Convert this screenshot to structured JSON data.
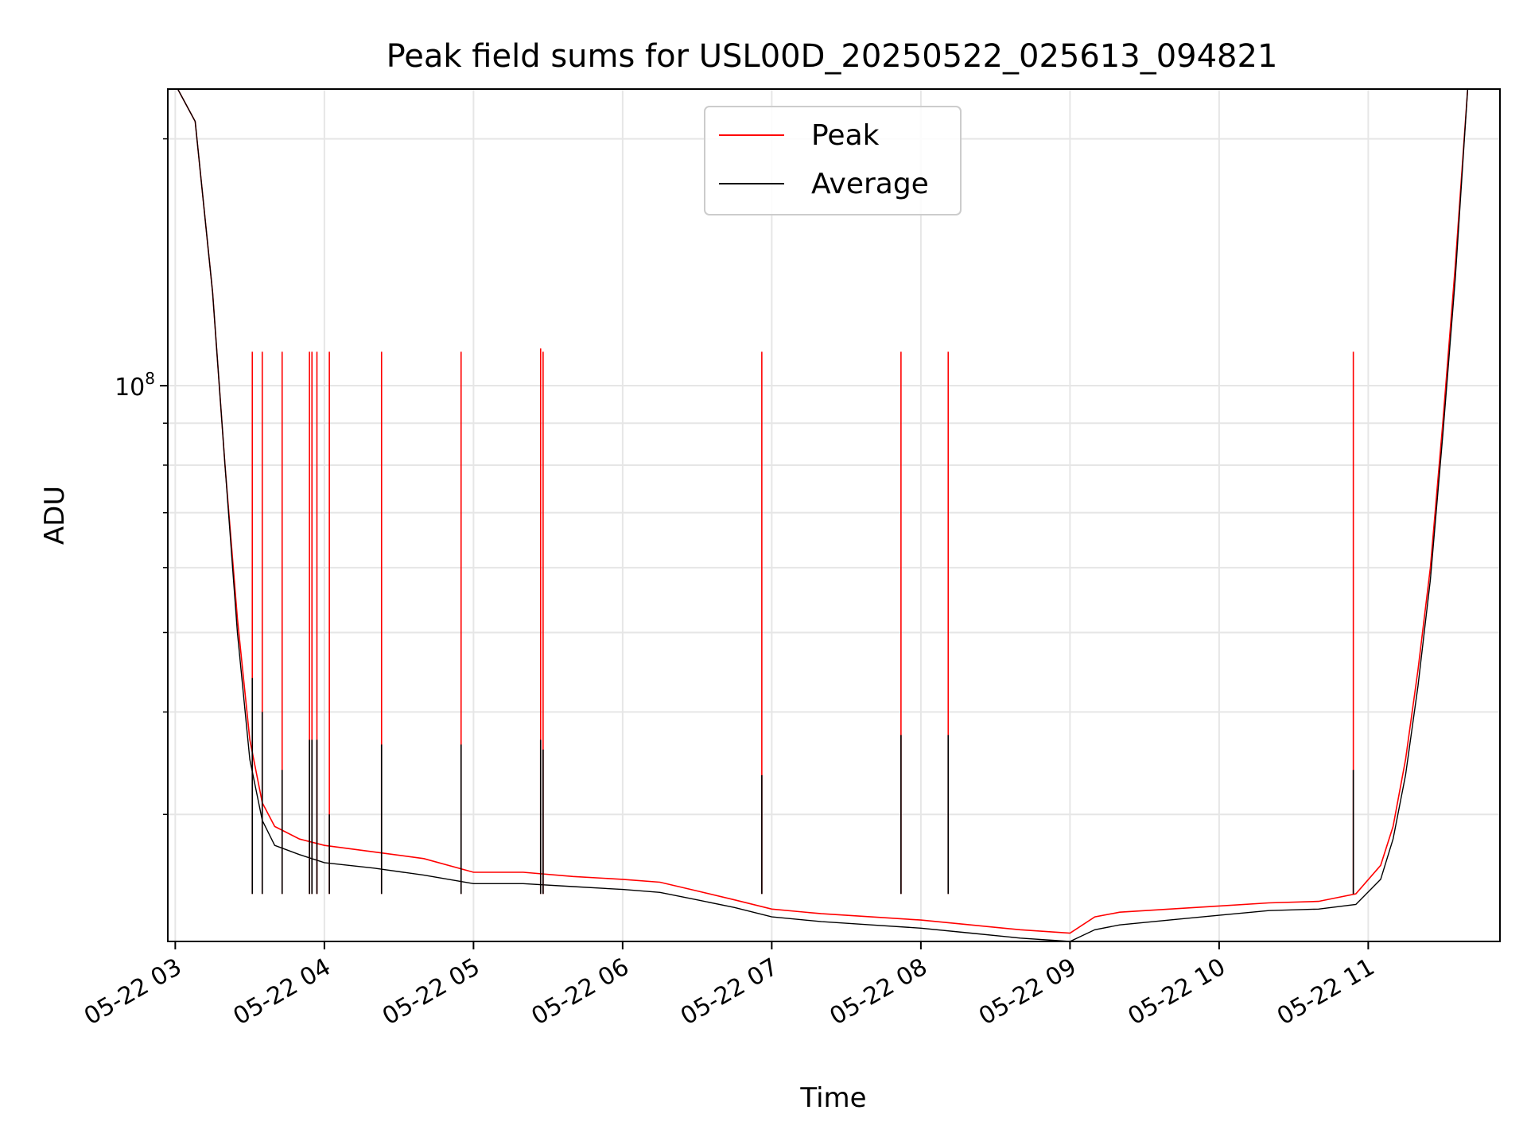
{
  "chart_data": {
    "type": "line",
    "title": "Peak field sums for USL00D_20250522_025613_094821",
    "xlabel": "Time",
    "ylabel": "ADU",
    "y_scale": "log",
    "grid": true,
    "legend_position": "top-center",
    "x_axis": {
      "range": [
        "2025-05-22 02:57",
        "2025-05-22 11:53"
      ],
      "ticks": [
        {
          "t": "2025-05-22 03:00",
          "label": "05-22 03"
        },
        {
          "t": "2025-05-22 04:00",
          "label": "05-22 04"
        },
        {
          "t": "2025-05-22 05:00",
          "label": "05-22 05"
        },
        {
          "t": "2025-05-22 06:00",
          "label": "05-22 06"
        },
        {
          "t": "2025-05-22 07:00",
          "label": "05-22 07"
        },
        {
          "t": "2025-05-22 08:00",
          "label": "05-22 08"
        },
        {
          "t": "2025-05-22 09:00",
          "label": "05-22 09"
        },
        {
          "t": "2025-05-22 10:00",
          "label": "05-22 10"
        },
        {
          "t": "2025-05-22 11:00",
          "label": "05-22 11"
        }
      ]
    },
    "y_axis": {
      "range": [
        21000000,
        230000000
      ],
      "major_ticks": [
        {
          "value": 100000000,
          "base": "10",
          "exp": "8"
        }
      ],
      "minor_ticks": [
        30000000,
        40000000,
        50000000,
        60000000,
        70000000,
        80000000,
        90000000,
        200000000
      ]
    },
    "series": [
      {
        "name": "Peak",
        "color": "#ff0000",
        "x": [
          "2025-05-22 03:01",
          "2025-05-22 03:08",
          "2025-05-22 03:15",
          "2025-05-22 03:20",
          "2025-05-22 03:25",
          "2025-05-22 03:30",
          "2025-05-22 03:35",
          "2025-05-22 03:40",
          "2025-05-22 03:50",
          "2025-05-22 04:00",
          "2025-05-22 04:20",
          "2025-05-22 04:40",
          "2025-05-22 05:00",
          "2025-05-22 05:20",
          "2025-05-22 05:40",
          "2025-05-22 06:00",
          "2025-05-22 06:15",
          "2025-05-22 06:30",
          "2025-05-22 06:45",
          "2025-05-22 07:00",
          "2025-05-22 07:20",
          "2025-05-22 07:40",
          "2025-05-22 08:00",
          "2025-05-22 08:20",
          "2025-05-22 08:40",
          "2025-05-22 09:00",
          "2025-05-22 09:10",
          "2025-05-22 09:20",
          "2025-05-22 09:40",
          "2025-05-22 10:00",
          "2025-05-22 10:20",
          "2025-05-22 10:40",
          "2025-05-22 10:55",
          "2025-05-22 11:05",
          "2025-05-22 11:10",
          "2025-05-22 11:15",
          "2025-05-22 11:20",
          "2025-05-22 11:25",
          "2025-05-22 11:30",
          "2025-05-22 11:35",
          "2025-05-22 11:40"
        ],
        "values": [
          230000000,
          210000000,
          130000000,
          80000000,
          52000000,
          37000000,
          31000000,
          29000000,
          28000000,
          27500000,
          27000000,
          26500000,
          25500000,
          25500000,
          25200000,
          25000000,
          24800000,
          24200000,
          23600000,
          23000000,
          22700000,
          22500000,
          22300000,
          22000000,
          21700000,
          21500000,
          22500000,
          22800000,
          23000000,
          23200000,
          23400000,
          23500000,
          24000000,
          26000000,
          29000000,
          35000000,
          45000000,
          60000000,
          90000000,
          140000000,
          230000000
        ]
      },
      {
        "name": "Average",
        "color": "#000000",
        "x": [
          "2025-05-22 03:01",
          "2025-05-22 03:08",
          "2025-05-22 03:15",
          "2025-05-22 03:20",
          "2025-05-22 03:25",
          "2025-05-22 03:30",
          "2025-05-22 03:35",
          "2025-05-22 03:40",
          "2025-05-22 03:50",
          "2025-05-22 04:00",
          "2025-05-22 04:20",
          "2025-05-22 04:40",
          "2025-05-22 05:00",
          "2025-05-22 05:20",
          "2025-05-22 05:40",
          "2025-05-22 06:00",
          "2025-05-22 06:15",
          "2025-05-22 06:30",
          "2025-05-22 06:45",
          "2025-05-22 07:00",
          "2025-05-22 07:20",
          "2025-05-22 07:40",
          "2025-05-22 08:00",
          "2025-05-22 08:20",
          "2025-05-22 08:40",
          "2025-05-22 09:00",
          "2025-05-22 09:10",
          "2025-05-22 09:20",
          "2025-05-22 09:40",
          "2025-05-22 10:00",
          "2025-05-22 10:20",
          "2025-05-22 10:40",
          "2025-05-22 10:55",
          "2025-05-22 11:05",
          "2025-05-22 11:10",
          "2025-05-22 11:15",
          "2025-05-22 11:20",
          "2025-05-22 11:25",
          "2025-05-22 11:30",
          "2025-05-22 11:35",
          "2025-05-22 11:40"
        ],
        "values": [
          230000000,
          210000000,
          130000000,
          80000000,
          50000000,
          35000000,
          29500000,
          27500000,
          26800000,
          26200000,
          25800000,
          25300000,
          24700000,
          24700000,
          24500000,
          24300000,
          24100000,
          23600000,
          23100000,
          22500000,
          22200000,
          22000000,
          21800000,
          21500000,
          21200000,
          21000000,
          21700000,
          22000000,
          22300000,
          22600000,
          22900000,
          23000000,
          23300000,
          25000000,
          28000000,
          33500000,
          43000000,
          58000000,
          87000000,
          135000000,
          230000000
        ]
      }
    ],
    "spikes": {
      "x": [
        "2025-05-22 03:31",
        "2025-05-22 03:35",
        "2025-05-22 03:43",
        "2025-05-22 03:54",
        "2025-05-22 03:55",
        "2025-05-22 03:57",
        "2025-05-22 04:02",
        "2025-05-22 04:23",
        "2025-05-22 04:55",
        "2025-05-22 05:27",
        "2025-05-22 05:28",
        "2025-05-22 06:56",
        "2025-05-22 07:52",
        "2025-05-22 08:11",
        "2025-05-22 10:54"
      ],
      "peak_values": [
        110000000,
        110000000,
        110000000,
        110000000,
        110000000,
        110000000,
        110000000,
        110000000,
        110000000,
        111000000,
        110000000,
        110000000,
        110000000,
        110000000,
        110000000
      ],
      "average_values": [
        44000000,
        40000000,
        34000000,
        37000000,
        37000000,
        37000000,
        30000000,
        36500000,
        36500000,
        37000000,
        36000000,
        33500000,
        37500000,
        37500000,
        34000000
      ]
    }
  }
}
